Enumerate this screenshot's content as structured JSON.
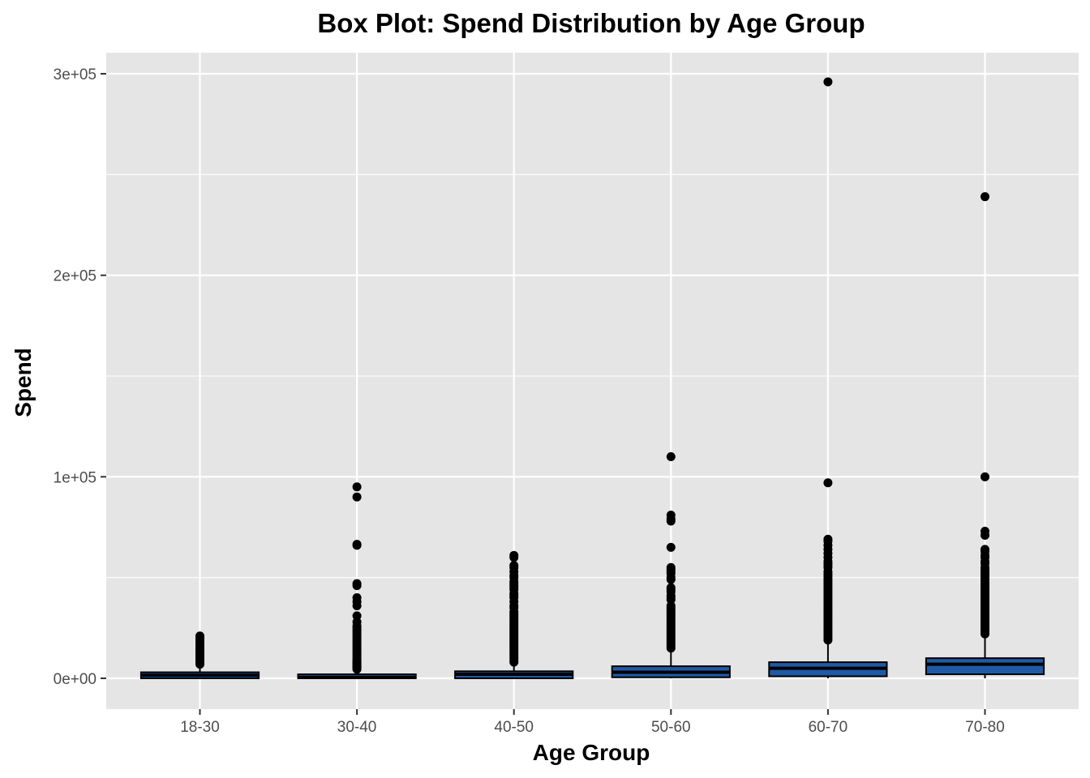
{
  "chart_data": {
    "type": "box",
    "title": "Box Plot: Spend Distribution by Age Group",
    "xlabel": "Age Group",
    "ylabel": "Spend",
    "ylim": [
      -15000,
      310000
    ],
    "y_ticks": [
      0,
      100000,
      200000,
      300000
    ],
    "y_tick_labels": [
      "0e+00",
      "1e+05",
      "2e+05",
      "3e+05"
    ],
    "grid": true,
    "legend": "none",
    "colors": {
      "panel_background": "#e5e5e5",
      "grid": "#ffffff",
      "box_fill": "#1f5aa6",
      "box_line": "#000000",
      "outlier": "#000000"
    },
    "categories": [
      "18-30",
      "30-40",
      "40-50",
      "50-60",
      "60-70",
      "70-80"
    ],
    "boxes": [
      {
        "category": "18-30",
        "q1": 0,
        "median": 1500,
        "q3": 3000,
        "whisker_low": 0,
        "whisker_high": 6000,
        "outliers": [
          7000,
          7500,
          8000,
          8500,
          9000,
          9500,
          10000,
          10500,
          11000,
          11500,
          12000,
          12500,
          13000,
          13500,
          14000,
          15000,
          16000,
          17000,
          18000,
          19000,
          20000,
          21000
        ]
      },
      {
        "category": "30-40",
        "q1": 0,
        "median": 500,
        "q3": 2000,
        "whisker_low": 0,
        "whisker_high": 4000,
        "outliers": [
          4500,
          5000,
          5500,
          6000,
          6500,
          7000,
          7500,
          8000,
          8500,
          9000,
          10000,
          11000,
          12000,
          13000,
          14000,
          15000,
          16000,
          17000,
          18000,
          19000,
          20000,
          21000,
          22000,
          23000,
          24000,
          25000,
          26000,
          28000,
          31000,
          36000,
          38000,
          40000,
          46000,
          47000,
          66000,
          66500,
          90000,
          95000
        ]
      },
      {
        "category": "40-50",
        "q1": 0,
        "median": 2000,
        "q3": 3500,
        "whisker_low": 0,
        "whisker_high": 7000,
        "outliers": [
          8000,
          9000,
          10000,
          11000,
          12000,
          13000,
          14000,
          15000,
          16000,
          17000,
          18000,
          19000,
          20000,
          21000,
          22000,
          23000,
          24000,
          25000,
          26000,
          27000,
          28000,
          29000,
          30000,
          31000,
          32000,
          33000,
          35000,
          36000,
          38000,
          40000,
          41000,
          42000,
          44000,
          45000,
          46000,
          47000,
          48000,
          50000,
          51000,
          53000,
          55000,
          56000,
          60000,
          61000
        ]
      },
      {
        "category": "50-60",
        "q1": 500,
        "median": 3000,
        "q3": 6000,
        "whisker_low": 0,
        "whisker_high": 14000,
        "outliers": [
          15000,
          16000,
          17000,
          18000,
          19000,
          20000,
          21000,
          22000,
          23000,
          24000,
          25000,
          26000,
          27000,
          28000,
          29000,
          30000,
          31000,
          32000,
          33000,
          34000,
          35000,
          36000,
          39000,
          40000,
          41000,
          43000,
          44000,
          45000,
          49000,
          50000,
          52000,
          53000,
          54000,
          55000,
          65000,
          78000,
          79000,
          81000,
          110000
        ]
      },
      {
        "category": "60-70",
        "q1": 1000,
        "median": 5000,
        "q3": 8000,
        "whisker_low": 0,
        "whisker_high": 17000,
        "outliers": [
          19000,
          20000,
          21000,
          22000,
          23000,
          24000,
          25000,
          26000,
          27000,
          28000,
          29000,
          30000,
          31000,
          32000,
          33000,
          34000,
          35000,
          36000,
          37000,
          38000,
          39000,
          40000,
          41000,
          42000,
          43000,
          44000,
          45000,
          46000,
          47000,
          48000,
          49000,
          50000,
          51000,
          52000,
          53000,
          55000,
          56000,
          57000,
          58000,
          60000,
          62000,
          64000,
          66000,
          68000,
          69000,
          97000,
          296000
        ]
      },
      {
        "category": "70-80",
        "q1": 2000,
        "median": 7000,
        "q3": 10000,
        "whisker_low": 0,
        "whisker_high": 21000,
        "outliers": [
          22000,
          23000,
          24000,
          25000,
          26000,
          27000,
          28000,
          29000,
          30000,
          31000,
          32000,
          33000,
          34000,
          35000,
          36000,
          37000,
          38000,
          39000,
          40000,
          41000,
          42000,
          43000,
          44000,
          45000,
          46000,
          47000,
          48000,
          49000,
          50000,
          51000,
          52000,
          53000,
          54000,
          55000,
          57000,
          58000,
          60000,
          61000,
          63000,
          64000,
          71000,
          73000,
          100000,
          239000
        ]
      }
    ]
  }
}
